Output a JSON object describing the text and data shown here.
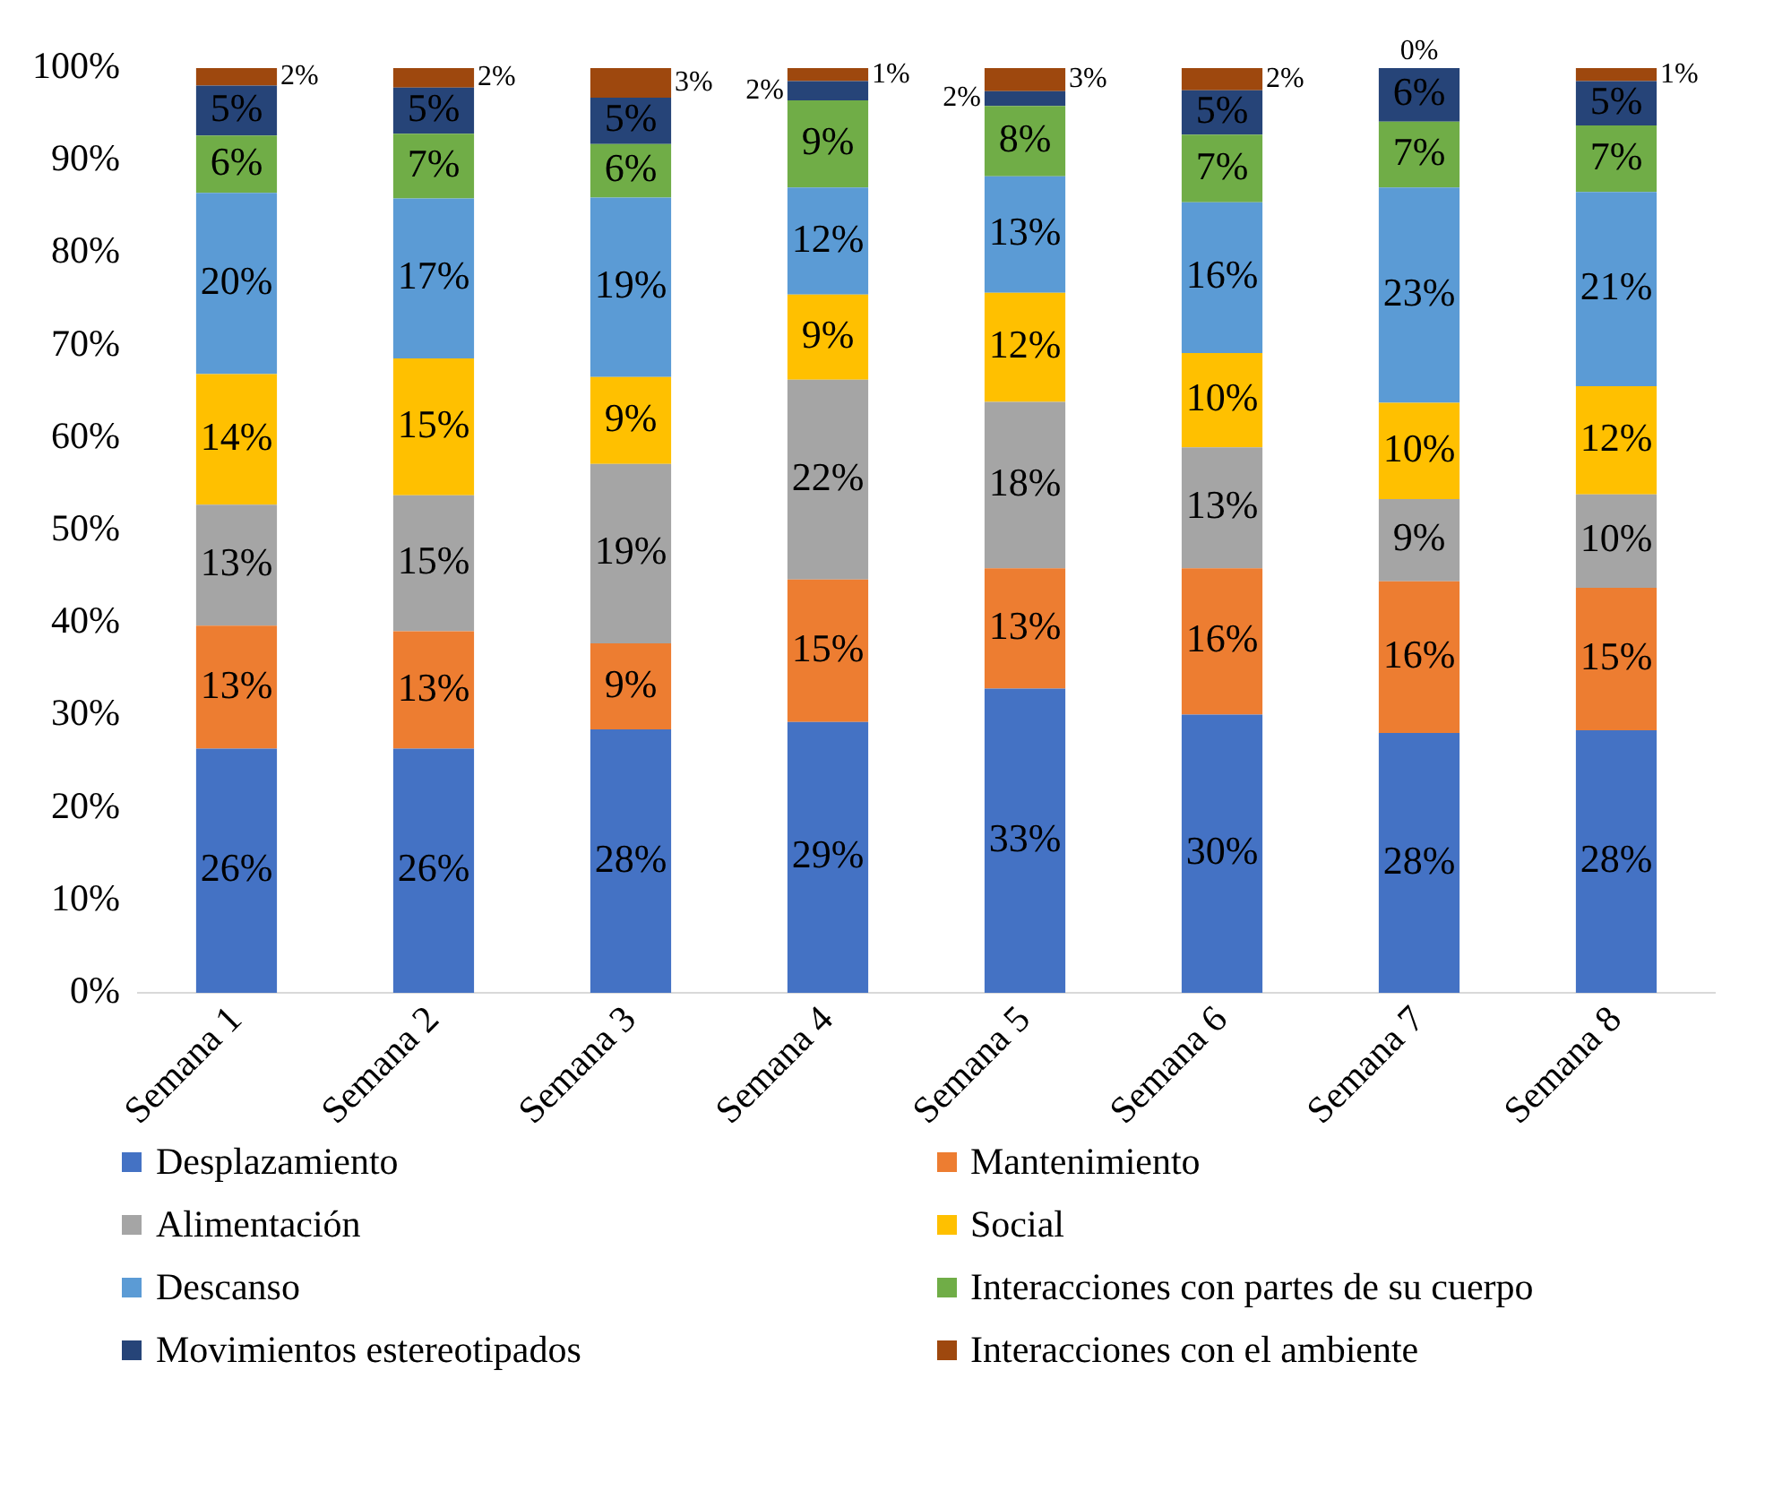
{
  "chart_data": {
    "type": "bar",
    "stacked": true,
    "categories": [
      "Semana 1",
      "Semana 2",
      "Semana 3",
      "Semana 4",
      "Semana 5",
      "Semana 6",
      "Semana 7",
      "Semana 8"
    ],
    "ylim": [
      0,
      100
    ],
    "yticks": [
      {
        "value": 0,
        "label": "0%"
      },
      {
        "value": 10,
        "label": "10%"
      },
      {
        "value": 20,
        "label": "20%"
      },
      {
        "value": 30,
        "label": "30%"
      },
      {
        "value": 40,
        "label": "40%"
      },
      {
        "value": 50,
        "label": "50%"
      },
      {
        "value": 60,
        "label": "60%"
      },
      {
        "value": 70,
        "label": "70%"
      },
      {
        "value": 80,
        "label": "80%"
      },
      {
        "value": 90,
        "label": "90%"
      },
      {
        "value": 100,
        "label": "100%"
      }
    ],
    "grid": false,
    "legend": "bottom",
    "series": [
      {
        "name": "Desplazamiento",
        "color": "#4472c4",
        "values": [
          26.4,
          26.4,
          28.5,
          29.3,
          32.9,
          30.1,
          28.1,
          28.4
        ],
        "value_labels": [
          "26%",
          "26%",
          "28%",
          "29%",
          "33%",
          "30%",
          "28%",
          "28%"
        ]
      },
      {
        "name": "Mantenimiento",
        "color": "#ed7d31",
        "values": [
          13.3,
          12.7,
          9.3,
          15.4,
          13.0,
          15.8,
          16.4,
          15.4
        ],
        "value_labels": [
          "13%",
          "13%",
          "9%",
          "15%",
          "13%",
          "16%",
          "16%",
          "15%"
        ]
      },
      {
        "name": "Alimentación",
        "color": "#a5a5a5",
        "values": [
          13.1,
          14.7,
          19.4,
          21.6,
          18.0,
          13.1,
          8.9,
          10.1
        ],
        "value_labels": [
          "13%",
          "15%",
          "19%",
          "22%",
          "18%",
          "13%",
          "9%",
          "10%"
        ]
      },
      {
        "name": "Social",
        "color": "#ffc000",
        "values": [
          14.1,
          14.8,
          9.4,
          9.2,
          11.8,
          10.2,
          10.4,
          11.7
        ],
        "value_labels": [
          "14%",
          "15%",
          "9%",
          "9%",
          "12%",
          "10%",
          "10%",
          "12%"
        ]
      },
      {
        "name": "Descanso",
        "color": "#5b9bd5",
        "values": [
          19.6,
          17.3,
          19.4,
          11.6,
          12.6,
          16.3,
          23.3,
          21.0
        ],
        "value_labels": [
          "20%",
          "17%",
          "19%",
          "12%",
          "13%",
          "16%",
          "23%",
          "21%"
        ]
      },
      {
        "name": "Interacciones con partes de su cuerpo",
        "color": "#70ad47",
        "values": [
          6.2,
          7.0,
          5.8,
          9.4,
          7.6,
          7.3,
          7.1,
          7.2
        ],
        "value_labels": [
          "6%",
          "7%",
          "6%",
          "9%",
          "8%",
          "7%",
          "7%",
          "7%"
        ]
      },
      {
        "name": "Movimientos estereotipados",
        "color": "#264478",
        "values": [
          5.4,
          5.0,
          5.0,
          2.1,
          1.6,
          4.8,
          5.8,
          4.8
        ],
        "value_labels": [
          "5%",
          "5%",
          "5%",
          "2%",
          "2%",
          "5%",
          "6%",
          "5%"
        ]
      },
      {
        "name": "Interacciones con el ambiente",
        "color": "#9e480e",
        "values": [
          1.9,
          2.1,
          3.2,
          1.4,
          2.5,
          2.4,
          0.0,
          1.4
        ],
        "value_labels": [
          "2%",
          "2%",
          "3%",
          "1%",
          "3%",
          "2%",
          "0%",
          "1%"
        ]
      }
    ]
  }
}
